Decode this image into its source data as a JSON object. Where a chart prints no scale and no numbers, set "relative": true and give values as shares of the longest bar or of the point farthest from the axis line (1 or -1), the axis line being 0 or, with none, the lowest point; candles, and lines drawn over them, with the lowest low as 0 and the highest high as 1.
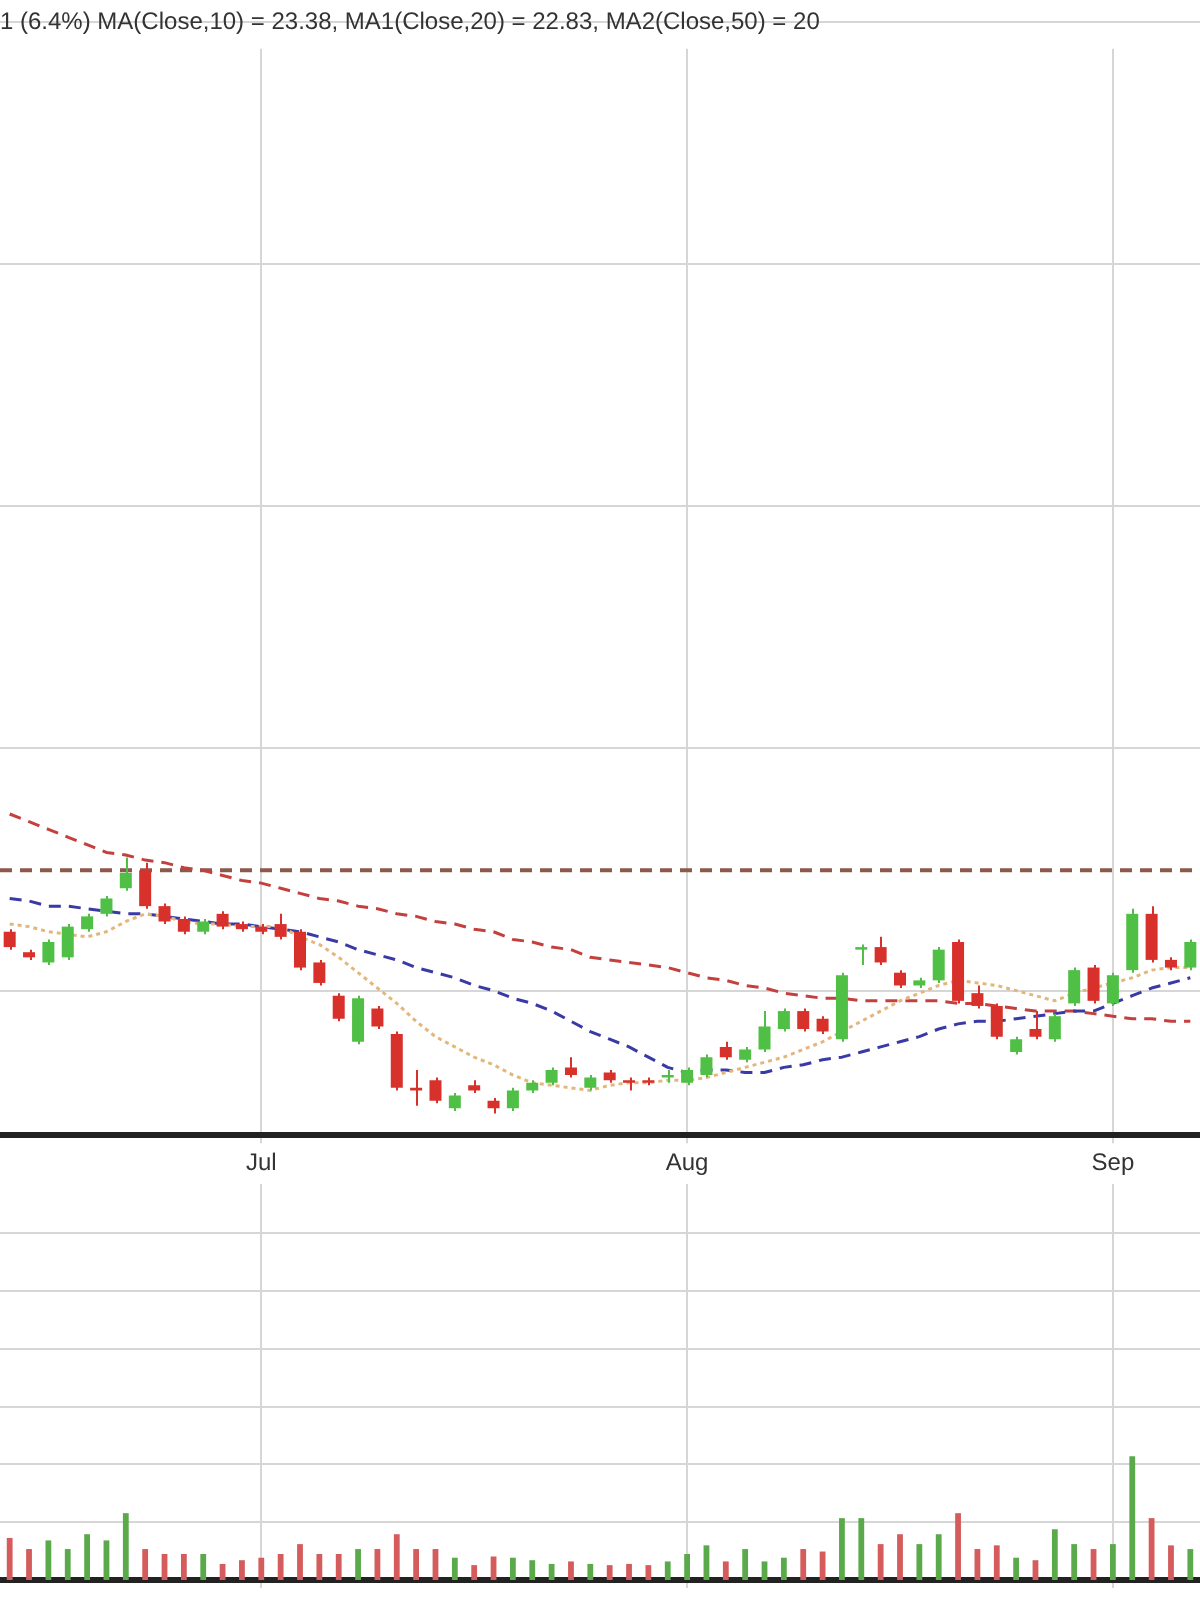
{
  "chart_data": [
    {
      "type": "candlestick",
      "title": "1 (6.4%) MA(Close,10) = 23.38, MA1(Close,20) = 22.83, MA2(Close,50) = 20",
      "relative": true,
      "grid": true,
      "tick_labels": "x",
      "categories": [
        null,
        null,
        null,
        null,
        null,
        null,
        null,
        null,
        null,
        null,
        null,
        null,
        null,
        "Jul",
        null,
        null,
        null,
        null,
        null,
        null,
        null,
        null,
        null,
        null,
        null,
        null,
        null,
        null,
        null,
        null,
        null,
        null,
        null,
        null,
        null,
        "Aug",
        null,
        null,
        null,
        null,
        null,
        null,
        null,
        null,
        null,
        null,
        null,
        null,
        null,
        null,
        null,
        null,
        null,
        null,
        null,
        null,
        null,
        "Sep",
        null,
        null,
        null,
        null
      ],
      "ohlc": [
        [
          0.71,
          0.72,
          0.64,
          0.65
        ],
        [
          0.63,
          0.64,
          0.6,
          0.61
        ],
        [
          0.59,
          0.68,
          0.58,
          0.67
        ],
        [
          0.61,
          0.74,
          0.6,
          0.73
        ],
        [
          0.72,
          0.78,
          0.71,
          0.77
        ],
        [
          0.78,
          0.85,
          0.77,
          0.84
        ],
        [
          0.88,
          1,
          0.87,
          0.94
        ],
        [
          0.95,
          0.98,
          0.8,
          0.81
        ],
        [
          0.81,
          0.82,
          0.74,
          0.75
        ],
        [
          0.76,
          0.77,
          0.7,
          0.71
        ],
        [
          0.71,
          0.76,
          0.7,
          0.75
        ],
        [
          0.78,
          0.79,
          0.72,
          0.73
        ],
        [
          0.74,
          0.75,
          0.71,
          0.72
        ],
        [
          0.73,
          0.74,
          0.7,
          0.71
        ],
        [
          0.74,
          0.78,
          0.68,
          0.69
        ],
        [
          0.71,
          0.72,
          0.56,
          0.57
        ],
        [
          0.59,
          0.6,
          0.5,
          0.51
        ],
        [
          0.46,
          0.47,
          0.36,
          0.37
        ],
        [
          0.28,
          0.46,
          0.27,
          0.45
        ],
        [
          0.41,
          0.42,
          0.33,
          0.34
        ],
        [
          0.31,
          0.32,
          0.09,
          0.1
        ],
        [
          0.1,
          0.17,
          0.03,
          0.09
        ],
        [
          0.13,
          0.14,
          0.04,
          0.05
        ],
        [
          0.02,
          0.08,
          0.01,
          0.07
        ],
        [
          0.11,
          0.13,
          0.08,
          0.09
        ],
        [
          0.05,
          0.06,
          0,
          0.02
        ],
        [
          0.02,
          0.1,
          0.01,
          0.09
        ],
        [
          0.09,
          0.13,
          0.08,
          0.12
        ],
        [
          0.12,
          0.18,
          0.11,
          0.17
        ],
        [
          0.18,
          0.22,
          0.14,
          0.15
        ],
        [
          0.1,
          0.15,
          0.09,
          0.14
        ],
        [
          0.16,
          0.17,
          0.12,
          0.13
        ],
        [
          0.13,
          0.14,
          0.09,
          0.12
        ],
        [
          0.13,
          0.14,
          0.11,
          0.12
        ],
        [
          0.14,
          0.17,
          0.12,
          0.15
        ],
        [
          0.12,
          0.18,
          0.11,
          0.17
        ],
        [
          0.15,
          0.23,
          0.14,
          0.22
        ],
        [
          0.26,
          0.28,
          0.21,
          0.22
        ],
        [
          0.21,
          0.26,
          0.2,
          0.25
        ],
        [
          0.25,
          0.4,
          0.24,
          0.34
        ],
        [
          0.33,
          0.41,
          0.32,
          0.4
        ],
        [
          0.4,
          0.41,
          0.32,
          0.33
        ],
        [
          0.37,
          0.38,
          0.31,
          0.32
        ],
        [
          0.29,
          0.55,
          0.28,
          0.54
        ],
        [
          0.64,
          0.66,
          0.58,
          0.65
        ],
        [
          0.65,
          0.69,
          0.58,
          0.59
        ],
        [
          0.55,
          0.56,
          0.49,
          0.5
        ],
        [
          0.5,
          0.53,
          0.49,
          0.52
        ],
        [
          0.52,
          0.65,
          0.51,
          0.64
        ],
        [
          0.67,
          0.68,
          0.43,
          0.44
        ],
        [
          0.47,
          0.5,
          0.41,
          0.42
        ],
        [
          0.42,
          0.43,
          0.29,
          0.3
        ],
        [
          0.24,
          0.3,
          0.23,
          0.29
        ],
        [
          0.33,
          0.4,
          0.29,
          0.3
        ],
        [
          0.29,
          0.39,
          0.28,
          0.38
        ],
        [
          0.43,
          0.57,
          0.42,
          0.56
        ],
        [
          0.57,
          0.58,
          0.43,
          0.44
        ],
        [
          0.43,
          0.55,
          0.42,
          0.54
        ],
        [
          0.56,
          0.8,
          0.55,
          0.78
        ],
        [
          0.78,
          0.81,
          0.59,
          0.6
        ],
        [
          0.6,
          0.61,
          0.56,
          0.57
        ],
        [
          0.57,
          0.68,
          0.56,
          0.67
        ]
      ],
      "colors": [
        "#d8302a",
        "#d8302a",
        "#4fbf45",
        "#4fbf45",
        "#4fbf45",
        "#4fbf45",
        "#4fbf45",
        "#d8302a",
        "#d8302a",
        "#d8302a",
        "#4fbf45",
        "#d8302a",
        "#d8302a",
        "#d8302a",
        "#d8302a",
        "#d8302a",
        "#d8302a",
        "#d8302a",
        "#4fbf45",
        "#d8302a",
        "#d8302a",
        "#d8302a",
        "#d8302a",
        "#4fbf45",
        "#d8302a",
        "#d8302a",
        "#4fbf45",
        "#4fbf45",
        "#4fbf45",
        "#d8302a",
        "#4fbf45",
        "#d8302a",
        "#d8302a",
        "#d8302a",
        "#4fbf45",
        "#4fbf45",
        "#4fbf45",
        "#d8302a",
        "#4fbf45",
        "#4fbf45",
        "#4fbf45",
        "#d8302a",
        "#d8302a",
        "#4fbf45",
        "#4fbf45",
        "#d8302a",
        "#d8302a",
        "#4fbf45",
        "#4fbf45",
        "#d8302a",
        "#d8302a",
        "#d8302a",
        "#4fbf45",
        "#d8302a",
        "#4fbf45",
        "#4fbf45",
        "#d8302a",
        "#4fbf45",
        "#4fbf45",
        "#d8302a",
        "#d8302a",
        "#4fbf45"
      ],
      "series": [
        {
          "type": "line",
          "color": "#e3b77c",
          "line_style": "dotted",
          "values": [
            0.74,
            0.73,
            0.71,
            0.7,
            0.69,
            0.71,
            0.75,
            0.78,
            0.77,
            0.75,
            0.74,
            0.74,
            0.73,
            0.73,
            0.73,
            0.69,
            0.66,
            0.61,
            0.55,
            0.49,
            0.43,
            0.36,
            0.3,
            0.26,
            0.22,
            0.19,
            0.15,
            0.12,
            0.11,
            0.1,
            0.09,
            0.11,
            0.12,
            0.12,
            0.13,
            0.13,
            0.14,
            0.16,
            0.18,
            0.2,
            0.22,
            0.25,
            0.28,
            0.32,
            0.36,
            0.4,
            0.44,
            0.47,
            0.5,
            0.52,
            0.51,
            0.5,
            0.48,
            0.46,
            0.44,
            0.47,
            0.49,
            0.51,
            0.53,
            0.56,
            0.57,
            0.57
          ]
        },
        {
          "type": "line",
          "color": "#3a3aa6",
          "line_style": "dashed",
          "values": [
            0.84,
            0.83,
            0.81,
            0.81,
            0.8,
            0.79,
            0.78,
            0.78,
            0.77,
            0.76,
            0.75,
            0.74,
            0.74,
            0.73,
            0.72,
            0.71,
            0.69,
            0.67,
            0.64,
            0.62,
            0.6,
            0.57,
            0.55,
            0.53,
            0.5,
            0.48,
            0.45,
            0.43,
            0.4,
            0.36,
            0.32,
            0.29,
            0.26,
            0.22,
            0.18,
            0.16,
            0.17,
            0.17,
            0.16,
            0.16,
            0.18,
            0.19,
            0.21,
            0.22,
            0.24,
            0.26,
            0.28,
            0.3,
            0.33,
            0.35,
            0.36,
            0.36,
            0.37,
            0.38,
            0.39,
            0.4,
            0.4,
            0.43,
            0.46,
            0.49,
            0.51,
            0.53
          ]
        },
        {
          "type": "line",
          "color": "#c4403e",
          "line_style": "dashed",
          "values": [
            1.17,
            1.14,
            1.11,
            1.08,
            1.05,
            1.02,
            1.01,
            0.99,
            0.98,
            0.96,
            0.95,
            0.93,
            0.91,
            0.9,
            0.88,
            0.86,
            0.84,
            0.83,
            0.81,
            0.8,
            0.78,
            0.77,
            0.75,
            0.74,
            0.72,
            0.71,
            0.68,
            0.67,
            0.65,
            0.64,
            0.61,
            0.6,
            0.59,
            0.58,
            0.57,
            0.55,
            0.53,
            0.52,
            0.5,
            0.49,
            0.47,
            0.46,
            0.45,
            0.45,
            0.44,
            0.44,
            0.44,
            0.44,
            0.44,
            0.43,
            0.43,
            0.42,
            0.41,
            0.4,
            0.4,
            0.4,
            0.39,
            0.38,
            0.37,
            0.37,
            0.36,
            0.36
          ]
        }
      ],
      "ref_lines": [
        {
          "axis": "y",
          "value": 0.95,
          "color": "#8c5a4c",
          "line_style": "dashed"
        }
      ]
    },
    {
      "type": "bar",
      "relative": true,
      "grid": true,
      "tick_labels": false,
      "categories": [
        null,
        null,
        null,
        null,
        null,
        null,
        null,
        null,
        null,
        null,
        null,
        null,
        null,
        null,
        null,
        null,
        null,
        null,
        null,
        null,
        null,
        null,
        null,
        null,
        null,
        null,
        null,
        null,
        null,
        null,
        null,
        null,
        null,
        null,
        null,
        null,
        null,
        null,
        null,
        null,
        null,
        null,
        null,
        null,
        null,
        null,
        null,
        null,
        null,
        null,
        null,
        null,
        null,
        null,
        null,
        null,
        null,
        null,
        null,
        null,
        null,
        null
      ],
      "values": [
        0.34,
        0.25,
        0.32,
        0.25,
        0.37,
        0.32,
        0.54,
        0.25,
        0.21,
        0.21,
        0.21,
        0.13,
        0.16,
        0.18,
        0.21,
        0.29,
        0.21,
        0.21,
        0.25,
        0.25,
        0.37,
        0.25,
        0.25,
        0.18,
        0.12,
        0.19,
        0.18,
        0.16,
        0.13,
        0.15,
        0.13,
        0.12,
        0.13,
        0.12,
        0.15,
        0.21,
        0.28,
        0.15,
        0.25,
        0.15,
        0.18,
        0.25,
        0.23,
        0.5,
        0.5,
        0.29,
        0.37,
        0.29,
        0.37,
        0.54,
        0.25,
        0.28,
        0.18,
        0.16,
        0.41,
        0.29,
        0.25,
        0.29,
        1,
        0.5,
        0.28,
        0.25
      ],
      "colors": [
        "#d45c5c",
        "#d45c5c",
        "#5aaa4c",
        "#5aaa4c",
        "#5aaa4c",
        "#5aaa4c",
        "#5aaa4c",
        "#d45c5c",
        "#d45c5c",
        "#d45c5c",
        "#5aaa4c",
        "#d45c5c",
        "#d45c5c",
        "#d45c5c",
        "#d45c5c",
        "#d45c5c",
        "#d45c5c",
        "#d45c5c",
        "#5aaa4c",
        "#d45c5c",
        "#d45c5c",
        "#d45c5c",
        "#d45c5c",
        "#5aaa4c",
        "#d45c5c",
        "#d45c5c",
        "#5aaa4c",
        "#5aaa4c",
        "#5aaa4c",
        "#d45c5c",
        "#5aaa4c",
        "#d45c5c",
        "#d45c5c",
        "#d45c5c",
        "#5aaa4c",
        "#5aaa4c",
        "#5aaa4c",
        "#d45c5c",
        "#5aaa4c",
        "#5aaa4c",
        "#5aaa4c",
        "#d45c5c",
        "#d45c5c",
        "#5aaa4c",
        "#5aaa4c",
        "#d45c5c",
        "#d45c5c",
        "#5aaa4c",
        "#5aaa4c",
        "#d45c5c",
        "#d45c5c",
        "#d45c5c",
        "#5aaa4c",
        "#d45c5c",
        "#5aaa4c",
        "#5aaa4c",
        "#d45c5c",
        "#5aaa4c",
        "#5aaa4c",
        "#d45c5c",
        "#d45c5c",
        "#5aaa4c"
      ]
    }
  ]
}
